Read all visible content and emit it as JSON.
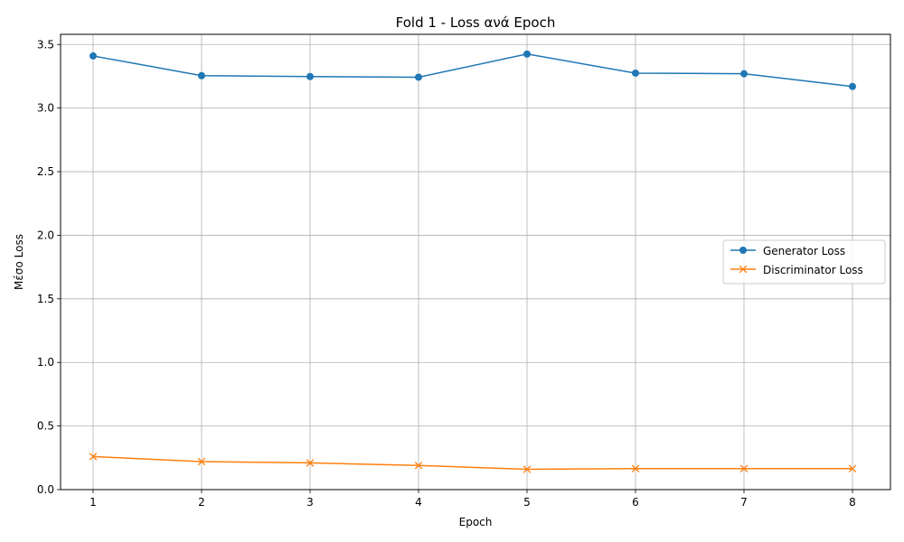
{
  "chart_data": {
    "type": "line",
    "title": "Fold 1 - Loss ανά Epoch",
    "xlabel": "Epoch",
    "ylabel": "Μέσο Loss",
    "x": [
      1,
      2,
      3,
      4,
      5,
      6,
      7,
      8
    ],
    "xlim": [
      0.7,
      8.35
    ],
    "ylim": [
      0.0,
      3.58
    ],
    "xticks": [
      "1",
      "2",
      "3",
      "4",
      "5",
      "6",
      "7",
      "8"
    ],
    "yticks": [
      "0.0",
      "0.5",
      "1.0",
      "1.5",
      "2.0",
      "2.5",
      "3.0",
      "3.5"
    ],
    "grid": true,
    "legend_position": "center-right",
    "series": [
      {
        "name": "Generator Loss",
        "marker": "circle",
        "color": "#1f77b4",
        "values": [
          3.41,
          3.255,
          3.248,
          3.243,
          3.425,
          3.275,
          3.27,
          3.17
        ]
      },
      {
        "name": "Discriminator Loss",
        "marker": "x",
        "color": "#ff7f0e",
        "values": [
          0.26,
          0.22,
          0.21,
          0.19,
          0.16,
          0.165,
          0.165,
          0.165
        ]
      }
    ]
  }
}
